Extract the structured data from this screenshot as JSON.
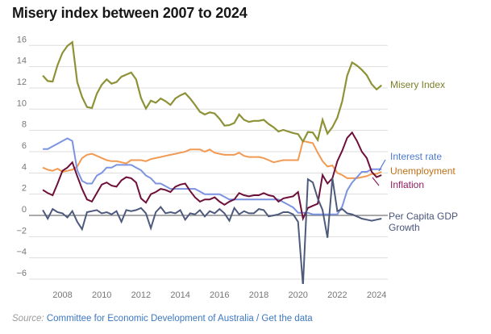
{
  "title": "Misery index between 2007 to 2024",
  "source": {
    "label": "Source:",
    "link1": "Committee for Economic Development of Australia",
    "separator": " / ",
    "link2": "Get the data"
  },
  "colors": {
    "background": "#ffffff",
    "title": "#171717",
    "grid": "#dddddd",
    "zero_line": "#777777",
    "tick": "#767676",
    "source_label": "#9a9a9a",
    "link": "#3c78c3"
  },
  "chart_data": {
    "type": "line",
    "title": "Misery index between 2007 to 2024",
    "xlabel": "",
    "ylabel": "",
    "x_start": 2007.0,
    "x_step": 0.25,
    "x_ticks": [
      2008,
      2010,
      2012,
      2014,
      2016,
      2018,
      2020,
      2022,
      2024
    ],
    "y_ticks": [
      16,
      14,
      12,
      10,
      8,
      6,
      4,
      2,
      0,
      -2,
      -4,
      -6
    ],
    "ylim": [
      -6.6,
      16.8
    ],
    "grid": true,
    "legend_position": "right",
    "series": [
      {
        "name": "Misery Index",
        "color": "#8e9237",
        "label_color": "#7c8029",
        "values": [
          13.15,
          12.65,
          12.6,
          14.15,
          15.3,
          15.95,
          16.3,
          12.55,
          11.15,
          10.2,
          10.1,
          11.45,
          12.3,
          12.8,
          12.4,
          12.55,
          13.05,
          13.25,
          13.45,
          12.8,
          11.05,
          10.05,
          10.8,
          10.6,
          11.0,
          10.75,
          10.4,
          11.0,
          11.3,
          11.5,
          11.0,
          10.4,
          9.75,
          9.5,
          9.7,
          9.6,
          9.1,
          8.45,
          8.5,
          8.7,
          9.5,
          9.0,
          8.8,
          8.9,
          8.9,
          9.0,
          8.6,
          8.3,
          7.9,
          8.05,
          7.9,
          7.75,
          7.65,
          6.95,
          7.85,
          7.8,
          7.1,
          9.0,
          7.7,
          8.3,
          9.2,
          10.75,
          13.15,
          14.4,
          14.1,
          13.7,
          13.2,
          12.35,
          11.85,
          12.25
        ]
      },
      {
        "name": "Interest rate",
        "color": "#7c93e2",
        "label_color": "#4d79cf",
        "values": [
          6.25,
          6.25,
          6.5,
          6.75,
          7.0,
          7.25,
          7.0,
          4.25,
          3.25,
          3.0,
          3.0,
          3.75,
          4.0,
          4.5,
          4.5,
          4.75,
          4.75,
          4.75,
          4.75,
          4.5,
          4.25,
          3.75,
          3.5,
          3.0,
          3.0,
          2.75,
          2.5,
          2.5,
          2.5,
          2.5,
          2.5,
          2.5,
          2.25,
          2.0,
          2.0,
          2.0,
          2.0,
          1.75,
          1.5,
          1.5,
          1.5,
          1.5,
          1.5,
          1.5,
          1.5,
          1.5,
          1.5,
          1.5,
          1.5,
          1.25,
          1.0,
          0.75,
          0.25,
          0.25,
          0.25,
          0.1,
          0.1,
          0.1,
          0.1,
          0.1,
          0.1,
          0.85,
          2.35,
          3.1,
          3.6,
          4.1,
          4.1,
          4.35,
          4.35,
          4.35
        ]
      },
      {
        "name": "Unemployment",
        "color": "#f29a52",
        "label_color": "#bd7117",
        "values": [
          4.5,
          4.3,
          4.2,
          4.4,
          4.1,
          4.2,
          4.3,
          4.6,
          5.4,
          5.7,
          5.8,
          5.6,
          5.4,
          5.2,
          5.1,
          5.1,
          5.0,
          4.9,
          5.2,
          5.2,
          5.2,
          5.1,
          5.3,
          5.4,
          5.5,
          5.6,
          5.7,
          5.8,
          5.9,
          6.0,
          6.2,
          6.2,
          6.2,
          6.0,
          6.2,
          5.9,
          5.8,
          5.7,
          5.7,
          5.7,
          5.9,
          5.6,
          5.5,
          5.5,
          5.5,
          5.4,
          5.2,
          5.0,
          5.1,
          5.2,
          5.2,
          5.2,
          5.2,
          7.0,
          6.9,
          6.8,
          5.9,
          5.1,
          4.6,
          4.7,
          4.0,
          3.8,
          3.5,
          3.5,
          3.5,
          3.6,
          3.7,
          3.9,
          3.9,
          4.1
        ]
      },
      {
        "name": "Inflation",
        "color": "#6d1039",
        "label_color": "#8e2060",
        "values": [
          2.4,
          2.1,
          1.9,
          3.0,
          4.2,
          4.5,
          5.0,
          3.7,
          2.5,
          1.5,
          1.3,
          2.1,
          2.9,
          3.1,
          2.8,
          2.7,
          3.3,
          3.6,
          3.5,
          3.1,
          1.6,
          1.2,
          2.0,
          2.2,
          2.5,
          2.4,
          2.2,
          2.7,
          2.9,
          3.0,
          2.3,
          1.7,
          1.3,
          1.5,
          1.5,
          1.7,
          1.3,
          1.0,
          1.3,
          1.5,
          2.1,
          1.9,
          1.8,
          1.9,
          1.9,
          2.1,
          1.9,
          1.8,
          1.3,
          1.6,
          1.7,
          1.8,
          2.2,
          -0.3,
          0.7,
          0.9,
          1.1,
          3.8,
          3.0,
          3.5,
          5.1,
          6.1,
          7.3,
          7.8,
          7.0,
          6.0,
          5.4,
          4.1,
          3.6,
          3.8
        ]
      },
      {
        "name": "Per Capita GDP Growth",
        "color": "#4e5a7c",
        "label_color": "#49547a",
        "values": [
          0.5,
          -0.3,
          0.6,
          0.3,
          0.2,
          -0.2,
          0.4,
          -0.6,
          -1.3,
          0.3,
          0.4,
          0.5,
          0.2,
          0.3,
          0.1,
          0.4,
          -0.6,
          0.5,
          0.4,
          0.5,
          0.7,
          0.2,
          -1.2,
          0.3,
          0.8,
          0.2,
          0.3,
          0.2,
          0.5,
          -0.4,
          0.2,
          0.1,
          0.5,
          -0.1,
          0.4,
          0.2,
          0.6,
          0.2,
          -0.5,
          0.7,
          0.1,
          0.4,
          0.2,
          0.2,
          0.6,
          0.5,
          -0.1,
          0.0,
          0.1,
          0.3,
          0.3,
          0.1,
          -0.6,
          -6.6,
          3.4,
          3.1,
          1.6,
          0.5,
          -2.1,
          3.5,
          0.4,
          0.6,
          0.2,
          0.1,
          -0.1,
          -0.3,
          -0.4,
          -0.5,
          -0.4,
          -0.3
        ]
      }
    ]
  }
}
